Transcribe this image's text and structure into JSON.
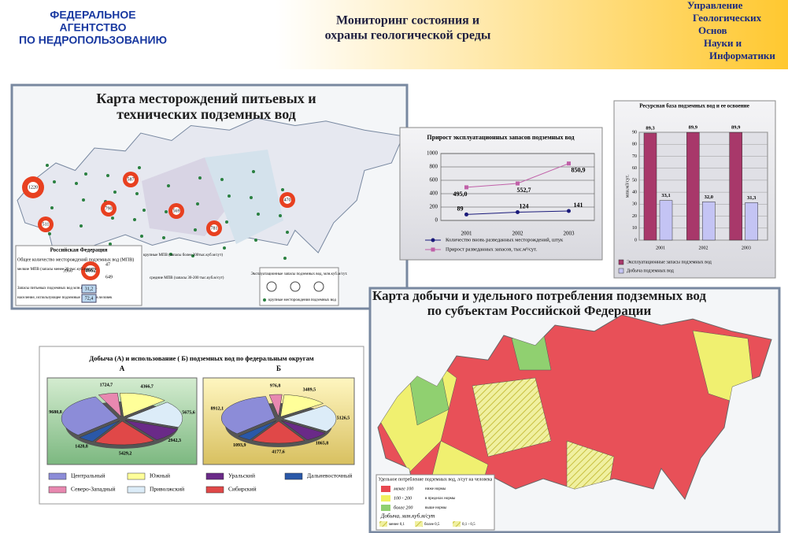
{
  "header": {
    "agency": [
      "ФЕДЕРАЛЬНОЕ",
      "АГЕНТСТВО",
      "ПО НЕДРОПОЛЬЗОВАНИЮ"
    ],
    "title": [
      "Мониторинг состояния и",
      "охраны геологической среды"
    ],
    "department": [
      "Управление",
      "Геологических",
      "Основ",
      "Науки и",
      "Информатики"
    ]
  },
  "map1": {
    "title": [
      "Карта месторождений питьевых и",
      "технических подземных  вод"
    ],
    "circle_labels": [
      "1220",
      "587",
      "790",
      "569",
      "781",
      "470",
      "511"
    ],
    "box_title": "Российская Федерация",
    "total_label": "Общее количество месторождений подземных вод (МПВ)",
    "total": "4662",
    "large": "47",
    "medium": "649",
    "small": "3966",
    "large_label": "крупные МПВ (запасы более 200тыс.куб.м/сут)",
    "medium_label": "средние МПВ (запасы 30-200 тыс.куб.м/сут)",
    "small_label": "мелкие МПВ (запасы менее 30 тыс.куб.м/сут)",
    "reserves": "31,2",
    "population": "72,4",
    "reserves_label": "Запасы питьевых подземных вод млн.куб.м/сут.",
    "population_label": "население, использующее подземные воды, млн.человек",
    "legend_title": "Эксплуатационные запасы подземных вод, млн.куб.м/сут.",
    "legend_dots": "крупные месторождения подземных вод"
  },
  "map2": {
    "title": [
      "Карта добычи и удельного потребления подземных вод",
      "по субъектам Российской Федерации"
    ],
    "legend_title": "Удельное потребление подземных вод, л/сут на человека",
    "levels": [
      {
        "range": "менее  100",
        "note": "ниже нормы"
      },
      {
        "range": "100 - 200",
        "note": "в пределах нормы"
      },
      {
        "range": "более  200",
        "note": "выше нормы"
      }
    ],
    "production_title": "Добыча, млн.куб.м/сут",
    "production": [
      "менее 0,1",
      "более 0,5",
      "0,1 - 0,5"
    ]
  },
  "chart_data": [
    {
      "type": "line",
      "title": "Прирост эксплуатационных запасов подземных вод",
      "categories": [
        "2001",
        "2002",
        "2003"
      ],
      "ylim": [
        0,
        1000
      ],
      "yticks": [
        0,
        200,
        400,
        600,
        800,
        1000
      ],
      "grid": true,
      "series": [
        {
          "name": "Количество вновь разведанных месторождений, штук",
          "color": "#1a1a7a",
          "values": [
            89,
            124,
            141
          ]
        },
        {
          "name": "Прирост разведанных запасов, тыс.м³/сут.",
          "color": "#c060a8",
          "values": [
            495.0,
            552.7,
            850.9
          ],
          "value_labels": [
            "495,0",
            "552,7",
            "850,9"
          ]
        }
      ]
    },
    {
      "type": "bar",
      "title": "Ресурсная база подземных вод и ее освоение",
      "ylabel": "млн.м3/сут.",
      "categories": [
        "2001",
        "2002",
        "2003"
      ],
      "ylim": [
        0,
        90
      ],
      "yticks": [
        0,
        10,
        20,
        30,
        40,
        50,
        60,
        70,
        80,
        90
      ],
      "grid": true,
      "series": [
        {
          "name": "Эксплуатационные запасы подземных вод",
          "color": "#a8386a",
          "values": [
            89.3,
            89.9,
            89.9
          ],
          "value_labels": [
            "89,3",
            "89,9",
            "89,9"
          ]
        },
        {
          "name": "Добыча подземных вод",
          "color": "#c4c4f4",
          "values": [
            33.1,
            32.0,
            31.3
          ],
          "value_labels": [
            "33,1",
            "32,0",
            "31,3"
          ]
        }
      ]
    },
    {
      "type": "pie",
      "title": "Добыча (А) и использование ( Б) подземных вод по федеральным округам",
      "categories": [
        "Центральный",
        "Северо-Западный",
        "Южный",
        "Приволжский",
        "Уральский",
        "Сибирский",
        "Дальневосточный"
      ],
      "colors": [
        "#8c8cd8",
        "#e888b0",
        "#ffff99",
        "#dcecf8",
        "#6a2a88",
        "#e04848",
        "#2a58a8"
      ],
      "series": [
        {
          "name": "А",
          "values": [
            9680.8,
            1724.7,
            4366.7,
            5675.6,
            2942.3,
            5429.2,
            1428.8
          ],
          "value_labels": [
            "9680,8",
            "1724,7",
            "4366,7",
            "5675,6",
            "2942,3",
            "5429,2",
            "1428,8"
          ]
        },
        {
          "name": "Б",
          "values": [
            8912.1,
            976.8,
            3489.5,
            5126.5,
            1865.8,
            4177.6,
            1093.9
          ],
          "value_labels": [
            "8912,1",
            "976,8",
            "3489,5",
            "5126,5",
            "1865,8",
            "4177,6",
            "1093,9"
          ]
        }
      ]
    }
  ]
}
